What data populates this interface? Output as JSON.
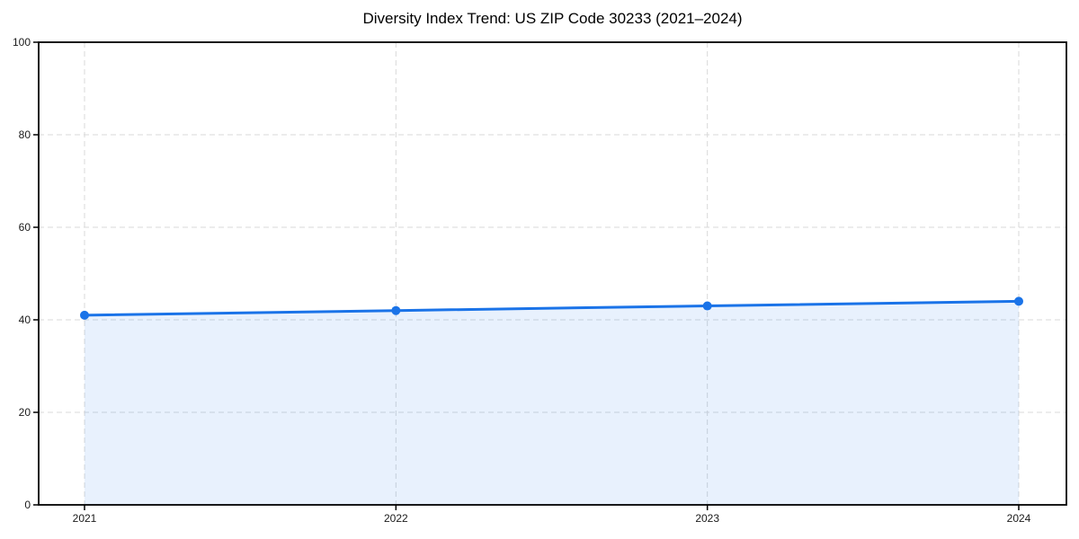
{
  "chart_data": {
    "type": "line",
    "title": "Diversity Index Trend: US ZIP Code 30233 (2021–2024)",
    "categories": [
      "2021",
      "2022",
      "2023",
      "2024"
    ],
    "series": [
      {
        "name": "Diversity Index",
        "values": [
          41,
          42,
          43,
          44
        ]
      }
    ],
    "xlabel": "",
    "ylabel": "",
    "ylim": [
      0,
      100
    ],
    "yticks": [
      0,
      20,
      40,
      60,
      80,
      100
    ],
    "grid": true,
    "grid_style": "dashed",
    "legend": "none",
    "area_fill": true,
    "markers": true,
    "colors": {
      "line": "#1a73e8",
      "marker": "#1a73e8",
      "area_fill": "#1a73e8",
      "area_fill_opacity": 0.1,
      "grid": "#d9d9d9",
      "axis": "#000000",
      "tick_label": "#1a1a1a",
      "title": "#000000",
      "background": "#ffffff"
    }
  }
}
